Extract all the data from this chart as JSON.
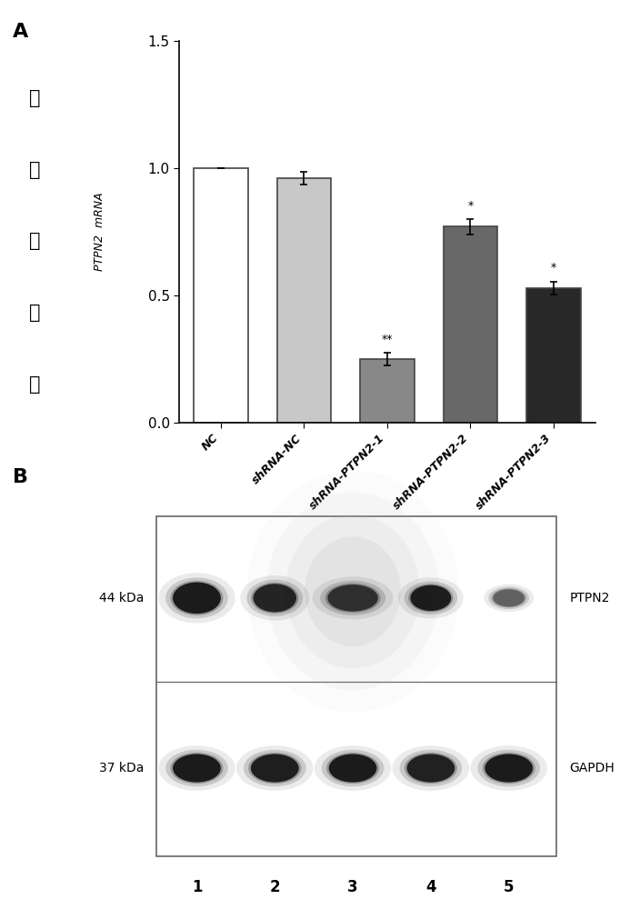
{
  "panel_A": {
    "categories": [
      "NC",
      "shRNA-NC",
      "shRNA-PTPN2-1",
      "shRNA-PTPN2-2",
      "shRNA-PTPN2-3"
    ],
    "values": [
      1.0,
      0.96,
      0.25,
      0.77,
      0.53
    ],
    "errors": [
      0.0,
      0.025,
      0.025,
      0.03,
      0.025
    ],
    "bar_colors": [
      "#ffffff",
      "#c8c8c8",
      "#888888",
      "#686868",
      "#282828"
    ],
    "bar_edgecolors": [
      "#444444",
      "#444444",
      "#444444",
      "#444444",
      "#444444"
    ],
    "significance": [
      "",
      "",
      "**",
      "*",
      "*"
    ],
    "ylabel_chinese": "相对表达量",
    "ylabel_english": "PTPN2  mRNA",
    "ylim": [
      0.0,
      1.5
    ],
    "yticks": [
      0.0,
      0.5,
      1.0,
      1.5
    ],
    "panel_label": "A"
  },
  "panel_B": {
    "panel_label": "B",
    "lane_labels": [
      "1",
      "2",
      "3",
      "4",
      "5"
    ],
    "kda_left": [
      "44 kDa",
      "37 kDa"
    ],
    "protein_right": [
      "PTPN2",
      "GAPDH"
    ]
  }
}
